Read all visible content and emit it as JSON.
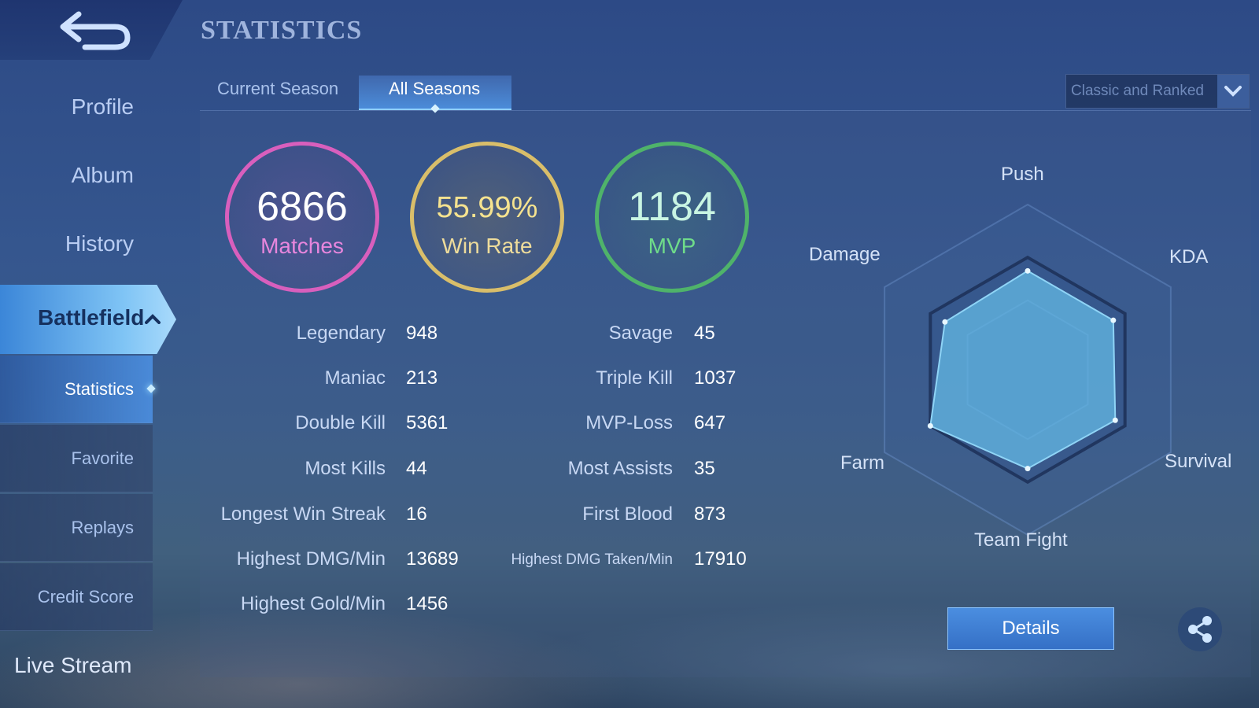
{
  "header": {
    "title": "STATISTICS"
  },
  "sidebar": {
    "items": [
      {
        "label": "Profile"
      },
      {
        "label": "Album"
      },
      {
        "label": "History"
      }
    ],
    "active": {
      "label": "Battlefield"
    },
    "sub_items": [
      {
        "label": "Statistics"
      },
      {
        "label": "Favorite"
      },
      {
        "label": "Replays"
      },
      {
        "label": "Credit Score"
      }
    ],
    "bottom": {
      "label": "Live Stream"
    }
  },
  "tabs": [
    {
      "label": "Current Season"
    },
    {
      "label": "All Seasons"
    }
  ],
  "mode_select": {
    "value": "Classic and Ranked"
  },
  "summary": {
    "matches": {
      "value": "6866",
      "label": "Matches",
      "color": "#d85fbd"
    },
    "win_rate": {
      "value": "55.99%",
      "label": "Win Rate",
      "color": "#d9be6a"
    },
    "mvp": {
      "value": "1184",
      "label": "MVP",
      "color": "#4fb36a"
    }
  },
  "stats_left": [
    {
      "label": "Legendary",
      "value": "948"
    },
    {
      "label": "Maniac",
      "value": "213"
    },
    {
      "label": "Double Kill",
      "value": "5361"
    },
    {
      "label": "Most Kills",
      "value": "44"
    },
    {
      "label": "Longest Win Streak",
      "value": "16"
    },
    {
      "label": "Highest DMG/Min",
      "value": "13689"
    },
    {
      "label": "Highest Gold/Min",
      "value": "1456"
    }
  ],
  "stats_right": [
    {
      "label": "Savage",
      "value": "45"
    },
    {
      "label": "Triple Kill",
      "value": "1037"
    },
    {
      "label": "MVP-Loss",
      "value": "647"
    },
    {
      "label": "Most Assists",
      "value": "35"
    },
    {
      "label": "First Blood",
      "value": "873"
    },
    {
      "label": "Highest DMG Taken/Min",
      "value": "17910"
    }
  ],
  "radar": {
    "axes": [
      "Push",
      "KDA",
      "Survival",
      "Team Fight",
      "Farm",
      "Damage"
    ],
    "values": [
      0.88,
      0.88,
      0.9,
      0.88,
      1.0,
      0.85
    ]
  },
  "buttons": {
    "details": "Details"
  },
  "icons": {
    "back": "back-arrow-icon",
    "chevron": "chevron-up-icon",
    "dropdown": "chevron-down-icon",
    "share": "share-icon"
  }
}
